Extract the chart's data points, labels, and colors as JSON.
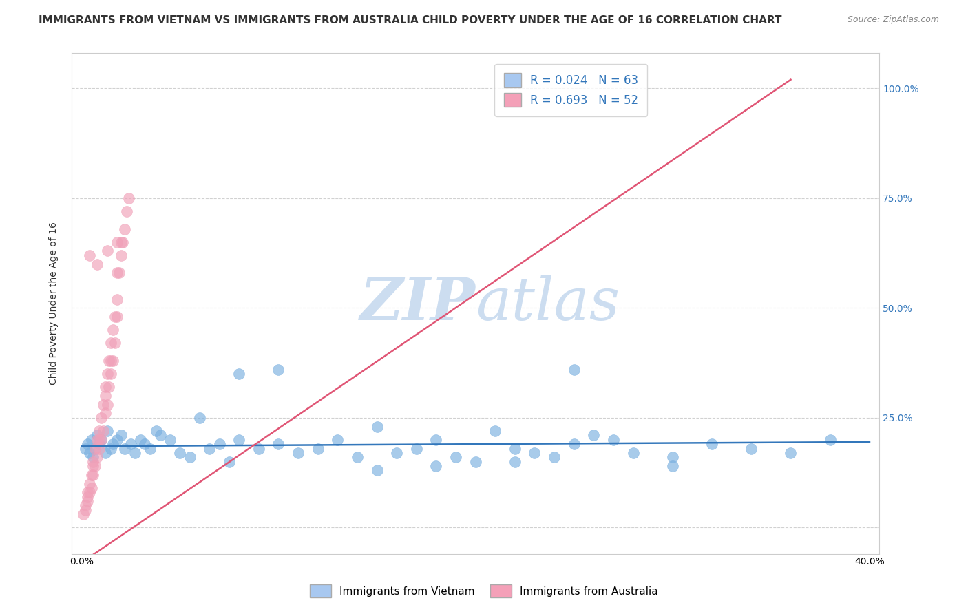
{
  "title": "IMMIGRANTS FROM VIETNAM VS IMMIGRANTS FROM AUSTRALIA CHILD POVERTY UNDER THE AGE OF 16 CORRELATION CHART",
  "source": "Source: ZipAtlas.com",
  "ylabel": "Child Poverty Under the Age of 16",
  "ytick_labels": [
    "",
    "25.0%",
    "50.0%",
    "75.0%",
    "100.0%"
  ],
  "legend_vietnam": {
    "label": "Immigrants from Vietnam",
    "R": "0.024",
    "N": "63",
    "color": "#a8c8f0"
  },
  "legend_australia": {
    "label": "Immigrants from Australia",
    "R": "0.693",
    "N": "52",
    "color": "#f4a0b8"
  },
  "vietnam_scatter_x": [
    0.002,
    0.003,
    0.004,
    0.005,
    0.006,
    0.007,
    0.008,
    0.009,
    0.01,
    0.012,
    0.013,
    0.015,
    0.016,
    0.018,
    0.02,
    0.022,
    0.025,
    0.027,
    0.03,
    0.032,
    0.035,
    0.038,
    0.04,
    0.045,
    0.05,
    0.055,
    0.06,
    0.065,
    0.07,
    0.075,
    0.08,
    0.09,
    0.1,
    0.11,
    0.12,
    0.13,
    0.14,
    0.15,
    0.16,
    0.17,
    0.18,
    0.19,
    0.2,
    0.21,
    0.22,
    0.23,
    0.24,
    0.25,
    0.26,
    0.27,
    0.28,
    0.3,
    0.32,
    0.34,
    0.36,
    0.38,
    0.1,
    0.18,
    0.25,
    0.3,
    0.15,
    0.22,
    0.08
  ],
  "vietnam_scatter_y": [
    0.18,
    0.19,
    0.17,
    0.2,
    0.16,
    0.18,
    0.21,
    0.19,
    0.2,
    0.17,
    0.22,
    0.18,
    0.19,
    0.2,
    0.21,
    0.18,
    0.19,
    0.17,
    0.2,
    0.19,
    0.18,
    0.22,
    0.21,
    0.2,
    0.17,
    0.16,
    0.25,
    0.18,
    0.19,
    0.15,
    0.2,
    0.18,
    0.19,
    0.17,
    0.18,
    0.2,
    0.16,
    0.23,
    0.17,
    0.18,
    0.2,
    0.16,
    0.15,
    0.22,
    0.18,
    0.17,
    0.16,
    0.19,
    0.21,
    0.2,
    0.17,
    0.16,
    0.19,
    0.18,
    0.17,
    0.2,
    0.36,
    0.14,
    0.36,
    0.14,
    0.13,
    0.15,
    0.35
  ],
  "australia_scatter_x": [
    0.001,
    0.002,
    0.003,
    0.004,
    0.005,
    0.006,
    0.007,
    0.008,
    0.009,
    0.01,
    0.011,
    0.012,
    0.013,
    0.014,
    0.015,
    0.016,
    0.017,
    0.018,
    0.019,
    0.02,
    0.021,
    0.022,
    0.023,
    0.024,
    0.003,
    0.005,
    0.007,
    0.009,
    0.011,
    0.013,
    0.015,
    0.017,
    0.002,
    0.004,
    0.006,
    0.008,
    0.01,
    0.012,
    0.014,
    0.016,
    0.018,
    0.02,
    0.003,
    0.006,
    0.009,
    0.012,
    0.015,
    0.018,
    0.004,
    0.008,
    0.013,
    0.018
  ],
  "australia_scatter_y": [
    0.03,
    0.05,
    0.08,
    0.1,
    0.12,
    0.15,
    0.18,
    0.2,
    0.22,
    0.25,
    0.28,
    0.32,
    0.35,
    0.38,
    0.42,
    0.45,
    0.48,
    0.52,
    0.58,
    0.62,
    0.65,
    0.68,
    0.72,
    0.75,
    0.06,
    0.09,
    0.14,
    0.18,
    0.22,
    0.28,
    0.35,
    0.42,
    0.04,
    0.08,
    0.12,
    0.16,
    0.2,
    0.26,
    0.32,
    0.38,
    0.58,
    0.65,
    0.07,
    0.14,
    0.2,
    0.3,
    0.38,
    0.48,
    0.62,
    0.6,
    0.63,
    0.65
  ],
  "vietnam_trend_x": [
    0.0,
    0.4
  ],
  "vietnam_trend_y": [
    0.185,
    0.195
  ],
  "australia_trend_x": [
    0.0,
    0.36
  ],
  "australia_trend_y": [
    -0.08,
    1.02
  ],
  "xlim": [
    -0.005,
    0.405
  ],
  "ylim": [
    -0.06,
    1.08
  ],
  "ytick_positions": [
    0.0,
    0.25,
    0.5,
    0.75,
    1.0
  ],
  "xtick_positions": [
    0.0,
    0.1,
    0.2,
    0.3,
    0.4
  ],
  "xtick_labels": [
    "0.0%",
    "",
    "",
    "",
    "40.0%"
  ],
  "background_color": "#ffffff",
  "grid_color": "#cccccc",
  "vietnam_color": "#7ab0e0",
  "australia_color": "#f0a0b8",
  "trend_vietnam_color": "#3377bb",
  "trend_australia_color": "#e05575",
  "watermark_zip": "ZIP",
  "watermark_atlas": "atlas",
  "watermark_color": "#ccddf0",
  "title_fontsize": 11,
  "source_fontsize": 9,
  "ylabel_fontsize": 10,
  "legend_fontsize": 12,
  "tick_fontsize": 10
}
